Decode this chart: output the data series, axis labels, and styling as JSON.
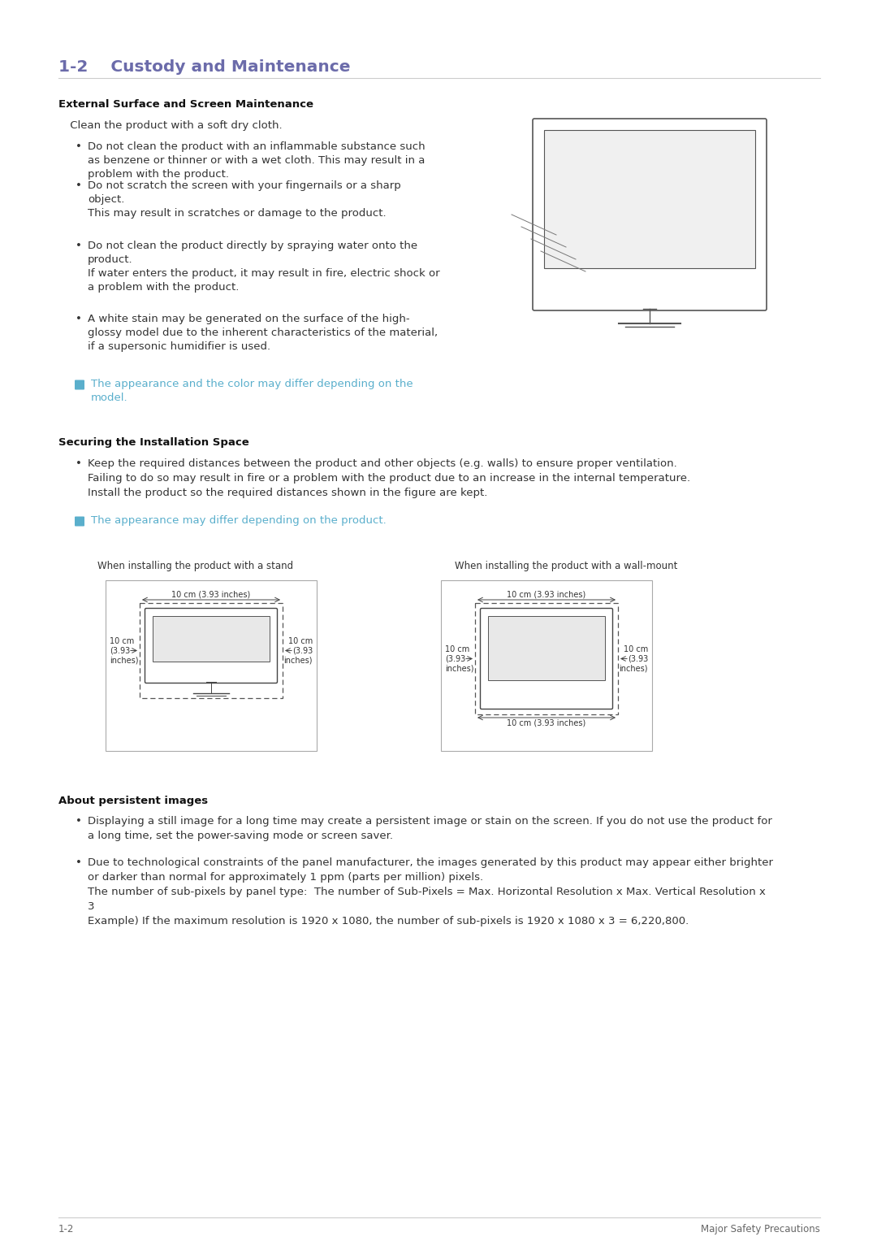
{
  "title": "1-2    Custody and Maintenance",
  "title_color": "#6b6baa",
  "bg_color": "#ffffff",
  "section1_heading": "External Surface and Screen Maintenance",
  "section1_intro": " Clean the product with a soft dry cloth.",
  "section1_bullets": [
    "Do not clean the product with an inflammable substance such\nas benzene or thinner or with a wet cloth. This may result in a\nproblem with the product.",
    "Do not scratch the screen with your fingernails or a sharp\nobject.\nThis may result in scratches or damage to the product.",
    "Do not clean the product directly by spraying water onto the\nproduct.\nIf water enters the product, it may result in fire, electric shock or\na problem with the product.",
    "A white stain may be generated on the surface of the high-\nglossy model due to the inherent characteristics of the material,\nif a supersonic humidifier is used."
  ],
  "section1_note": "The appearance and the color may differ depending on the\nmodel.",
  "section2_heading": "Securing the Installation Space",
  "section2_bullet": "Keep the required distances between the product and other objects (e.g. walls) to ensure proper ventilation.\nFailing to do so may result in fire or a problem with the product due to an increase in the internal temperature.\nInstall the product so the required distances shown in the figure are kept.",
  "section2_note": "The appearance may differ depending on the product.",
  "stand_label": "When installing the product with a stand",
  "wallmount_label": "When installing the product with a wall-mount",
  "section3_heading": "About persistent images",
  "section3_bullet1": "Displaying a still image for a long time may create a persistent image or stain on the screen. If you do not use the product for\na long time, set the power-saving mode or screen saver.",
  "section3_bullet2": "Due to technological constraints of the panel manufacturer, the images generated by this product may appear either brighter\nor darker than normal for approximately 1 ppm (parts per million) pixels.\nThe number of sub-pixels by panel type:  The number of Sub-Pixels = Max. Horizontal Resolution x Max. Vertical Resolution x\n3\nExample) If the maximum resolution is 1920 x 1080, the number of sub-pixels is 1920 x 1080 x 3 = 6,220,800.",
  "footer_left": "1-2",
  "footer_right": "Major Safety Precautions",
  "note_color": "#5aafcc",
  "body_color": "#333333",
  "heading_color": "#111111",
  "line_color": "#cccccc",
  "dim_label_top": "10 cm (3.93 inches)",
  "dim_label_side": "10 cm\n(3.93\ninches)",
  "dim_label_bottom": "10 cm (3.93 inches)"
}
